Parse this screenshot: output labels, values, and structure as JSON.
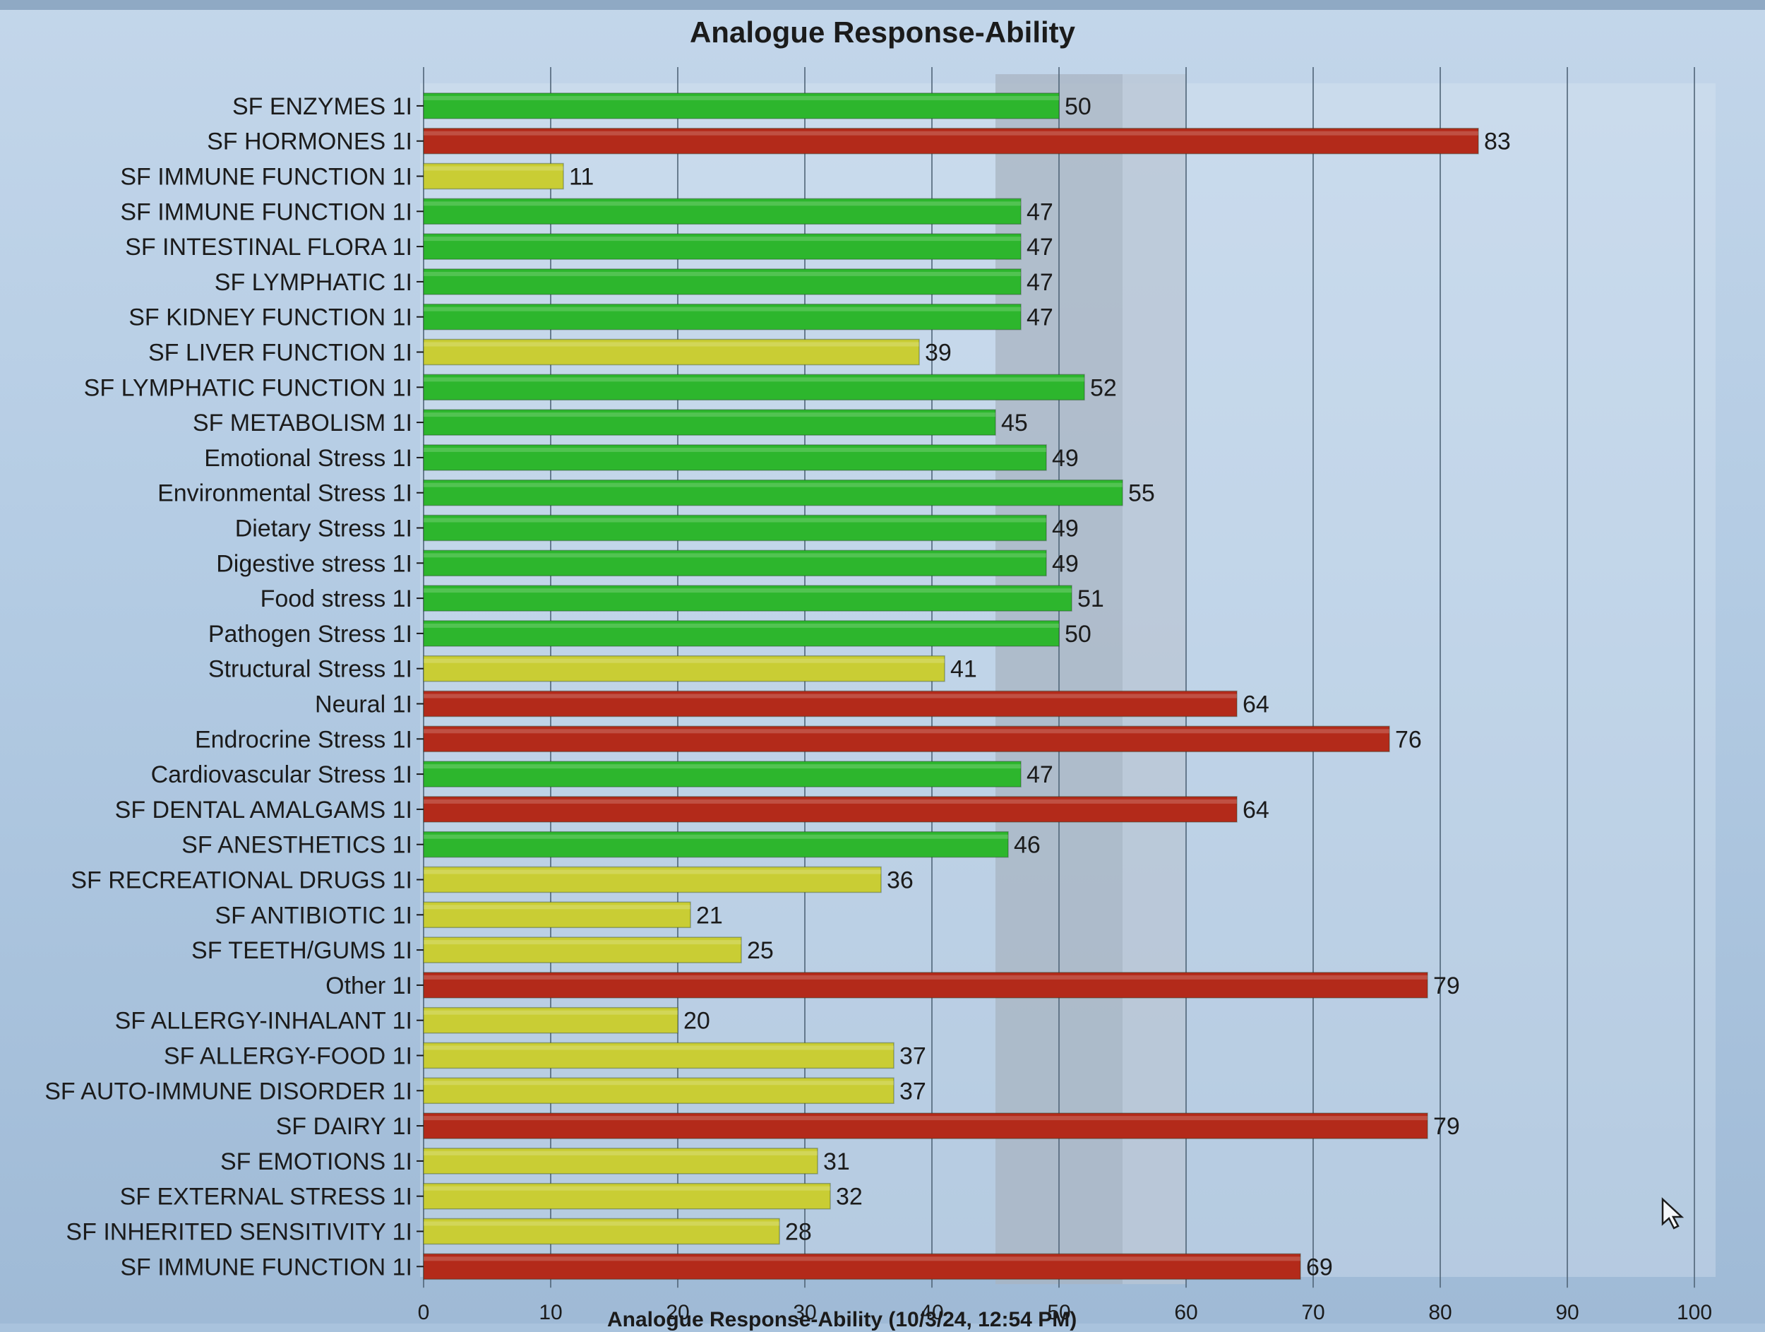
{
  "chart_data": {
    "type": "bar",
    "orientation": "horizontal",
    "title": "Analogue Response-Ability",
    "xlabel": "Analogue Response-Ability (10/3/24, 12:54 PM)",
    "ylabel": "",
    "xlim": [
      0,
      100
    ],
    "x_ticks": [
      "0",
      "10",
      "20",
      "30",
      "40",
      "50",
      "60",
      "70",
      "80",
      "90",
      "100"
    ],
    "reference_bands": [
      {
        "from": 45,
        "to": 55,
        "color": "#a8b4c2"
      },
      {
        "from": 55,
        "to": 60,
        "color": "#b9c6d4"
      }
    ],
    "grid": "vertical",
    "legend": "none",
    "colors": {
      "green": "#2db62d",
      "yellow": "#c9cd34",
      "red": "#b32a1a"
    },
    "categories": [
      "SF ENZYMES 1I",
      "SF HORMONES 1I",
      "SF IMMUNE FUNCTION 1I",
      "SF IMMUNE FUNCTION 1I",
      "SF INTESTINAL FLORA 1I",
      "SF LYMPHATIC 1I",
      "SF KIDNEY FUNCTION 1I",
      "SF LIVER FUNCTION 1I",
      "SF LYMPHATIC FUNCTION 1I",
      "SF METABOLISM 1I",
      "Emotional Stress 1I",
      "Environmental Stress 1I",
      "Dietary Stress 1I",
      "Digestive stress 1I",
      "Food stress 1I",
      "Pathogen Stress 1I",
      "Structural Stress 1I",
      "Neural 1I",
      "Endrocrine Stress 1I",
      "Cardiovascular Stress 1I",
      "SF DENTAL AMALGAMS 1I",
      "SF ANESTHETICS 1I",
      "SF RECREATIONAL DRUGS 1I",
      "SF ANTIBIOTIC 1I",
      "SF TEETH/GUMS 1I",
      "Other 1I",
      "SF ALLERGY-INHALANT 1I",
      "SF ALLERGY-FOOD 1I",
      "SF AUTO-IMMUNE DISORDER 1I",
      "SF DAIRY 1I",
      "SF EMOTIONS 1I",
      "SF EXTERNAL STRESS 1I",
      "SF INHERITED SENSITIVITY 1I",
      "SF IMMUNE FUNCTION 1I"
    ],
    "values": [
      50,
      83,
      11,
      47,
      47,
      47,
      47,
      39,
      52,
      45,
      49,
      55,
      49,
      49,
      51,
      50,
      41,
      64,
      76,
      47,
      64,
      46,
      36,
      21,
      25,
      79,
      20,
      37,
      37,
      79,
      31,
      32,
      28,
      69
    ],
    "bar_colors": [
      "green",
      "red",
      "yellow",
      "green",
      "green",
      "green",
      "green",
      "yellow",
      "green",
      "green",
      "green",
      "green",
      "green",
      "green",
      "green",
      "green",
      "yellow",
      "red",
      "red",
      "green",
      "red",
      "green",
      "yellow",
      "yellow",
      "yellow",
      "red",
      "yellow",
      "yellow",
      "yellow",
      "red",
      "yellow",
      "yellow",
      "yellow",
      "red"
    ]
  }
}
